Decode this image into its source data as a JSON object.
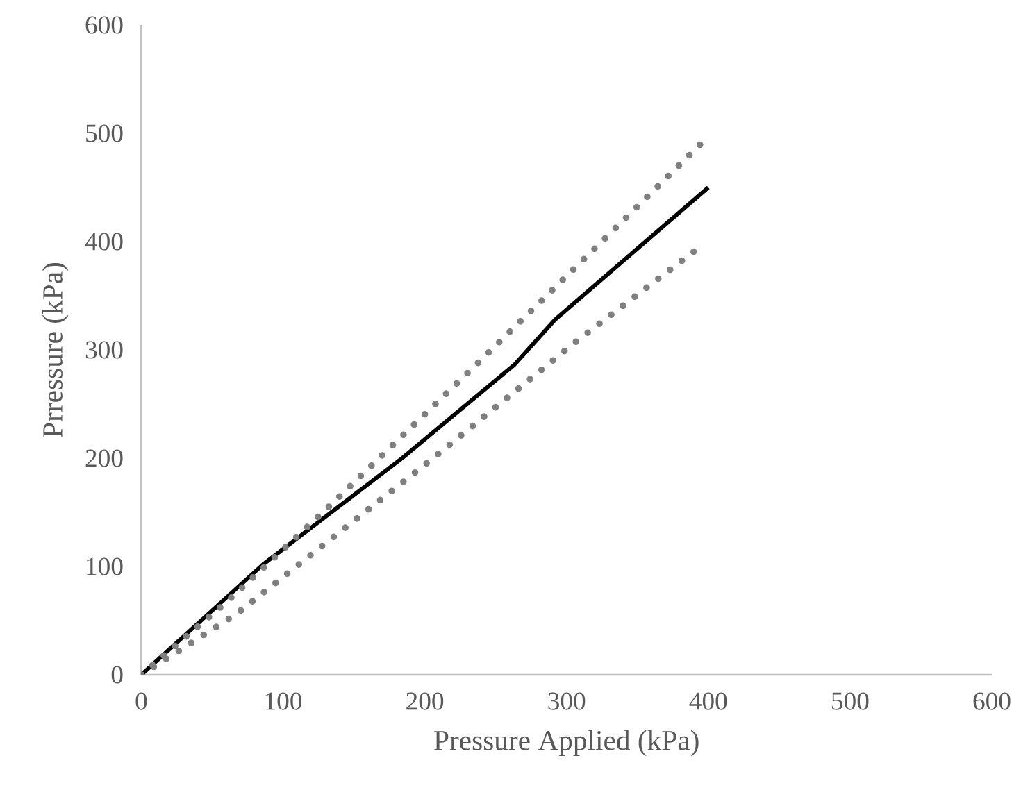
{
  "chart_data": {
    "type": "line",
    "xlabel": "Pressure Applied (kPa)",
    "ylabel": "Prressure (kPa)",
    "xlim": [
      0,
      600
    ],
    "ylim": [
      0,
      600
    ],
    "xticks": [
      0,
      100,
      200,
      300,
      400,
      500,
      600
    ],
    "yticks": [
      0,
      100,
      200,
      300,
      400,
      500,
      600
    ],
    "grid": false,
    "marker": "none",
    "series": [
      {
        "color": "#000000",
        "line_style": "solid",
        "x": [
          0,
          86,
          184,
          263,
          292,
          400
        ],
        "values": [
          0,
          102,
          200,
          286,
          328,
          450
        ]
      },
      {
        "color": "#808080",
        "line_style": "dotted",
        "x": [
          0,
          60,
          129,
          236,
          321,
          400
        ],
        "values": [
          0,
          67,
          151,
          286,
          395,
          497
        ]
      },
      {
        "color": "#808080",
        "line_style": "dotted",
        "x": [
          0,
          67,
          119,
          204,
          308,
          393
        ],
        "values": [
          0,
          56,
          110,
          198,
          309,
          394
        ]
      }
    ]
  }
}
